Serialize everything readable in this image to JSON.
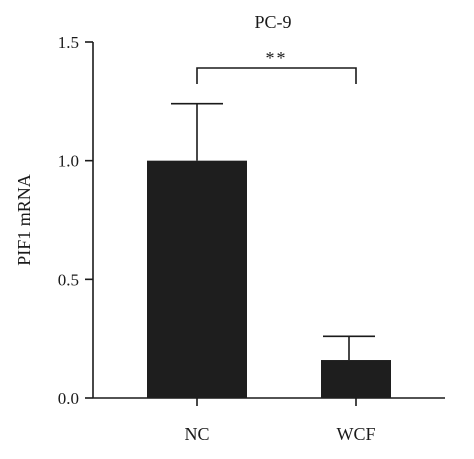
{
  "chart_data": {
    "type": "bar",
    "title": "PC-9",
    "ylabel": "PIF1 mRNA",
    "xlabel": "",
    "categories": [
      "NC",
      "WCF"
    ],
    "values": [
      1.0,
      0.16
    ],
    "errors": [
      0.24,
      0.1
    ],
    "ylim": [
      0,
      1.5
    ],
    "yticks": [
      "0.0",
      "0.5",
      "1.0",
      "1.5"
    ],
    "grid": false,
    "bar_color": "#1e1e1e",
    "significance": {
      "between": [
        "NC",
        "WCF"
      ],
      "label": "**"
    }
  }
}
